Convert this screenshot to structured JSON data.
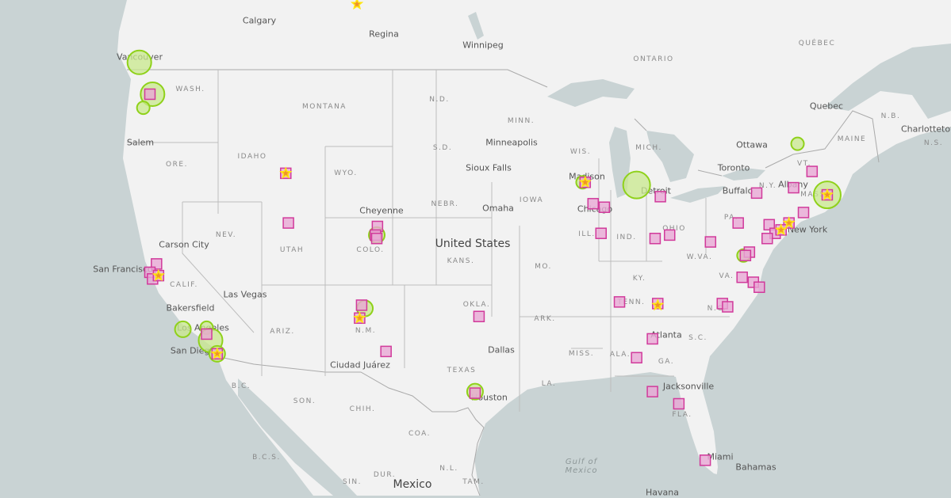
{
  "map": {
    "colors": {
      "land": "#f2f2f2",
      "water": "#c9d3d4",
      "border": "#bdbdbd",
      "circle_fill": "#c8e88c",
      "circle_stroke": "#8fd11a",
      "square_fill": "#e8a7d4",
      "square_stroke": "#d13a9b",
      "star_fill": "#f0932b",
      "star_stroke": "#ffe812"
    },
    "labels": {
      "countries": [
        "United States",
        "Mexico"
      ],
      "cities": [
        "Calgary",
        "Regina",
        "Winnipeg",
        "Vancouver",
        "Salem",
        "Minneapolis",
        "Sioux Falls",
        "Madison",
        "Ottawa",
        "Quebec",
        "Charlottetown",
        "Toronto",
        "Detroit",
        "Buffalo",
        "Albany",
        "Chicago",
        "Cheyenne",
        "Omaha",
        "Carson City",
        "New York",
        "San Francisco",
        "Las Vegas",
        "Bakersfield",
        "Los Angeles",
        "San Diego",
        "Dallas",
        "Atlanta",
        "Ciudad Juárez",
        "Houston",
        "Jacksonville",
        "Miami",
        "Bahamas",
        "Havana"
      ],
      "regions": [
        "ONTARIO",
        "QUÉBEC",
        "WASH.",
        "MONTANA",
        "N.D.",
        "MINN.",
        "ORE.",
        "IDAHO",
        "S.D.",
        "WIS.",
        "MICH.",
        "MAINE",
        "N.B.",
        "N.S.",
        "WYO.",
        "N.Y.",
        "MASS.",
        "NEBR.",
        "IOWA",
        "PA.",
        "VT.",
        "NEV.",
        "UTAH",
        "COLO.",
        "KANS.",
        "ILL.",
        "IND.",
        "OHIO",
        "W.VA.",
        "MO.",
        "CALIF.",
        "KY.",
        "VA.",
        "OKLA.",
        "TENN.",
        "N.C.",
        "ARK.",
        "ARIZ.",
        "N.M.",
        "S.C.",
        "MISS.",
        "ALA.",
        "GA.",
        "TEXAS",
        "LA.",
        "B.C.",
        "SON.",
        "CHIH.",
        "FLA.",
        "COA.",
        "B.C.S.",
        "N.L.",
        "DUR.",
        "SIN.",
        "TAM."
      ],
      "seas": [
        "Gulf of Mexico"
      ]
    },
    "markers": {
      "circles": [
        {
          "lon": -123.1,
          "lat": 49.3,
          "size": "large"
        },
        {
          "lon": -122.1,
          "lat": 47.7,
          "size": "large"
        },
        {
          "lon": -122.8,
          "lat": 47.0,
          "size": "small"
        },
        {
          "lon": -73.2,
          "lat": 45.1,
          "size": "small"
        },
        {
          "lon": -85.4,
          "lat": 42.85,
          "size": "xlarge"
        },
        {
          "lon": -70.95,
          "lat": 42.3,
          "size": "xlarge"
        },
        {
          "lon": -105.1,
          "lat": 40.0,
          "size": "medium"
        },
        {
          "lon": -77.3,
          "lat": 38.8,
          "size": "small"
        },
        {
          "lon": -106.0,
          "lat": 35.6,
          "size": "medium"
        },
        {
          "lon": -119.8,
          "lat": 34.3,
          "size": "medium"
        },
        {
          "lon": -118.0,
          "lat": 34.4,
          "size": "small"
        },
        {
          "lon": -117.7,
          "lat": 33.6,
          "size": "large"
        },
        {
          "lon": -117.2,
          "lat": 32.75,
          "size": "medium"
        },
        {
          "lon": -97.65,
          "lat": 30.3,
          "size": "medium"
        },
        {
          "lon": -89.5,
          "lat": 43.0,
          "size": "small"
        }
      ],
      "squares": [
        {
          "lon": -122.3,
          "lat": 47.7
        },
        {
          "lon": -112.0,
          "lat": 43.5
        },
        {
          "lon": -111.8,
          "lat": 40.7
        },
        {
          "lon": -105.05,
          "lat": 40.5
        },
        {
          "lon": -105.2,
          "lat": 40.0
        },
        {
          "lon": -105.1,
          "lat": 39.8
        },
        {
          "lon": -121.8,
          "lat": 38.3
        },
        {
          "lon": -122.3,
          "lat": 37.8
        },
        {
          "lon": -122.1,
          "lat": 37.4
        },
        {
          "lon": -121.65,
          "lat": 37.6
        },
        {
          "lon": -106.25,
          "lat": 35.8
        },
        {
          "lon": -106.4,
          "lat": 35.0
        },
        {
          "lon": -104.4,
          "lat": 32.9
        },
        {
          "lon": -97.35,
          "lat": 35.1
        },
        {
          "lon": -118.0,
          "lat": 34.0
        },
        {
          "lon": -117.2,
          "lat": 32.75
        },
        {
          "lon": -97.65,
          "lat": 30.2
        },
        {
          "lon": -88.7,
          "lat": 41.8
        },
        {
          "lon": -87.85,
          "lat": 41.6
        },
        {
          "lon": -88.1,
          "lat": 40.1
        },
        {
          "lon": -89.3,
          "lat": 43.0
        },
        {
          "lon": -83.6,
          "lat": 42.2
        },
        {
          "lon": -84.0,
          "lat": 39.8
        },
        {
          "lon": -82.9,
          "lat": 40.0
        },
        {
          "lon": -79.8,
          "lat": 39.6
        },
        {
          "lon": -77.7,
          "lat": 40.7
        },
        {
          "lon": -76.3,
          "lat": 42.4
        },
        {
          "lon": -73.5,
          "lat": 42.7
        },
        {
          "lon": -72.1,
          "lat": 43.6
        },
        {
          "lon": -72.75,
          "lat": 41.3
        },
        {
          "lon": -75.35,
          "lat": 40.6
        },
        {
          "lon": -74.9,
          "lat": 40.1
        },
        {
          "lon": -75.5,
          "lat": 39.8
        },
        {
          "lon": -73.85,
          "lat": 40.7
        },
        {
          "lon": -74.45,
          "lat": 40.3
        },
        {
          "lon": -76.85,
          "lat": 39.0
        },
        {
          "lon": -77.15,
          "lat": 38.8
        },
        {
          "lon": -77.4,
          "lat": 37.5
        },
        {
          "lon": -76.55,
          "lat": 37.2
        },
        {
          "lon": -76.1,
          "lat": 36.9
        },
        {
          "lon": -78.9,
          "lat": 35.9
        },
        {
          "lon": -78.5,
          "lat": 35.7
        },
        {
          "lon": -86.7,
          "lat": 36.0
        },
        {
          "lon": -83.8,
          "lat": 35.9
        },
        {
          "lon": -84.2,
          "lat": 33.7
        },
        {
          "lon": -85.4,
          "lat": 32.5
        },
        {
          "lon": -84.2,
          "lat": 30.3
        },
        {
          "lon": -82.2,
          "lat": 29.5
        },
        {
          "lon": -80.2,
          "lat": 25.7
        },
        {
          "lon": -70.95,
          "lat": 42.3
        }
      ],
      "stars": [
        {
          "lon": -106.6,
          "lat": 52.1
        },
        {
          "lon": -112.0,
          "lat": 43.5
        },
        {
          "lon": -89.3,
          "lat": 43.0
        },
        {
          "lon": -121.65,
          "lat": 37.6
        },
        {
          "lon": -106.4,
          "lat": 35.0
        },
        {
          "lon": -117.2,
          "lat": 32.75
        },
        {
          "lon": -83.8,
          "lat": 35.8
        },
        {
          "lon": -73.85,
          "lat": 40.7
        },
        {
          "lon": -74.45,
          "lat": 40.3
        },
        {
          "lon": -70.95,
          "lat": 42.3
        }
      ]
    }
  }
}
